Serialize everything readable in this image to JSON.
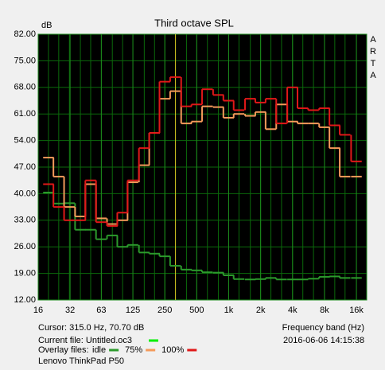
{
  "chart_data": {
    "type": "step",
    "title": "Third octave SPL",
    "y_label": "dB",
    "x_label": "Frequency band (Hz)",
    "side_letters": [
      "A",
      "R",
      "T",
      "A"
    ],
    "x_scale": "log",
    "xlim": [
      16,
      20000
    ],
    "ylim": [
      12,
      82
    ],
    "xticks": [
      16,
      32,
      63,
      125,
      250,
      500,
      {
        "value": 1000,
        "label": "1k"
      },
      {
        "value": 2000,
        "label": "2k"
      },
      {
        "value": 4000,
        "label": "4k"
      },
      {
        "value": 8000,
        "label": "8k"
      },
      {
        "value": 16000,
        "label": "16k"
      }
    ],
    "yticks": [
      {
        "value": 12,
        "label": "12.00"
      },
      {
        "value": 19,
        "label": "19.00"
      },
      {
        "value": 26,
        "label": "26.00"
      },
      {
        "value": 33,
        "label": "33.00"
      },
      {
        "value": 40,
        "label": "40.00"
      },
      {
        "value": 47,
        "label": "47.00"
      },
      {
        "value": 54,
        "label": "54.00"
      },
      {
        "value": 61,
        "label": "61.00"
      },
      {
        "value": 68,
        "label": "68.00"
      },
      {
        "value": 75,
        "label": "75.00"
      },
      {
        "value": 82,
        "label": "82.00"
      }
    ],
    "grid": true,
    "x": [
      20,
      25,
      31.5,
      40,
      50,
      63,
      80,
      100,
      125,
      160,
      200,
      250,
      315,
      400,
      500,
      630,
      800,
      1000,
      1250,
      1600,
      2000,
      2500,
      3150,
      4000,
      5000,
      6300,
      8000,
      10000,
      12500,
      16000
    ],
    "series": [
      {
        "name": "idle",
        "color": "#2c9a2c",
        "values": [
          40.3,
          37.4,
          37.5,
          30.5,
          30.5,
          28,
          29,
          26,
          26.5,
          24.5,
          24.2,
          23.5,
          21,
          20,
          19.8,
          19.3,
          19.2,
          18.5,
          17.5,
          17.4,
          17.5,
          17.8,
          17.4,
          17.4,
          17.4,
          17.6,
          18.1,
          18.2,
          17.8,
          17.8
        ]
      },
      {
        "name": "75%",
        "color": "#f59a5a",
        "values": [
          49.5,
          44.5,
          36.5,
          34,
          42.5,
          33.5,
          32,
          33,
          43,
          47.5,
          56,
          65,
          67,
          58.5,
          59,
          63,
          62.8,
          60,
          61,
          60.5,
          61.5,
          57,
          63.5,
          59,
          58.5,
          58.5,
          57.5,
          52,
          44.5,
          44.5
        ]
      },
      {
        "name": "100%",
        "color": "#e01818",
        "values": [
          42.5,
          36.5,
          33,
          33,
          43.5,
          32.5,
          31.5,
          35,
          43.5,
          52,
          56,
          69.5,
          70.7,
          63,
          63.5,
          67.5,
          66,
          64.5,
          62,
          65,
          64,
          65,
          58.5,
          68,
          62.5,
          62,
          62.5,
          58,
          55.5,
          48.5
        ]
      }
    ],
    "cursor_x": 315,
    "cursor_color": "#d8c020",
    "cursor_label": "Cursor:  315.0 Hz, 70.70 dB",
    "current_file_label": "Current file: Untitled.oc3",
    "current_file_color": "#00ee00",
    "overlay_label": "Overlay files:",
    "timestamp": "2016-06-06  14:15:38",
    "device": "Lenovo ThinkPad P50"
  }
}
